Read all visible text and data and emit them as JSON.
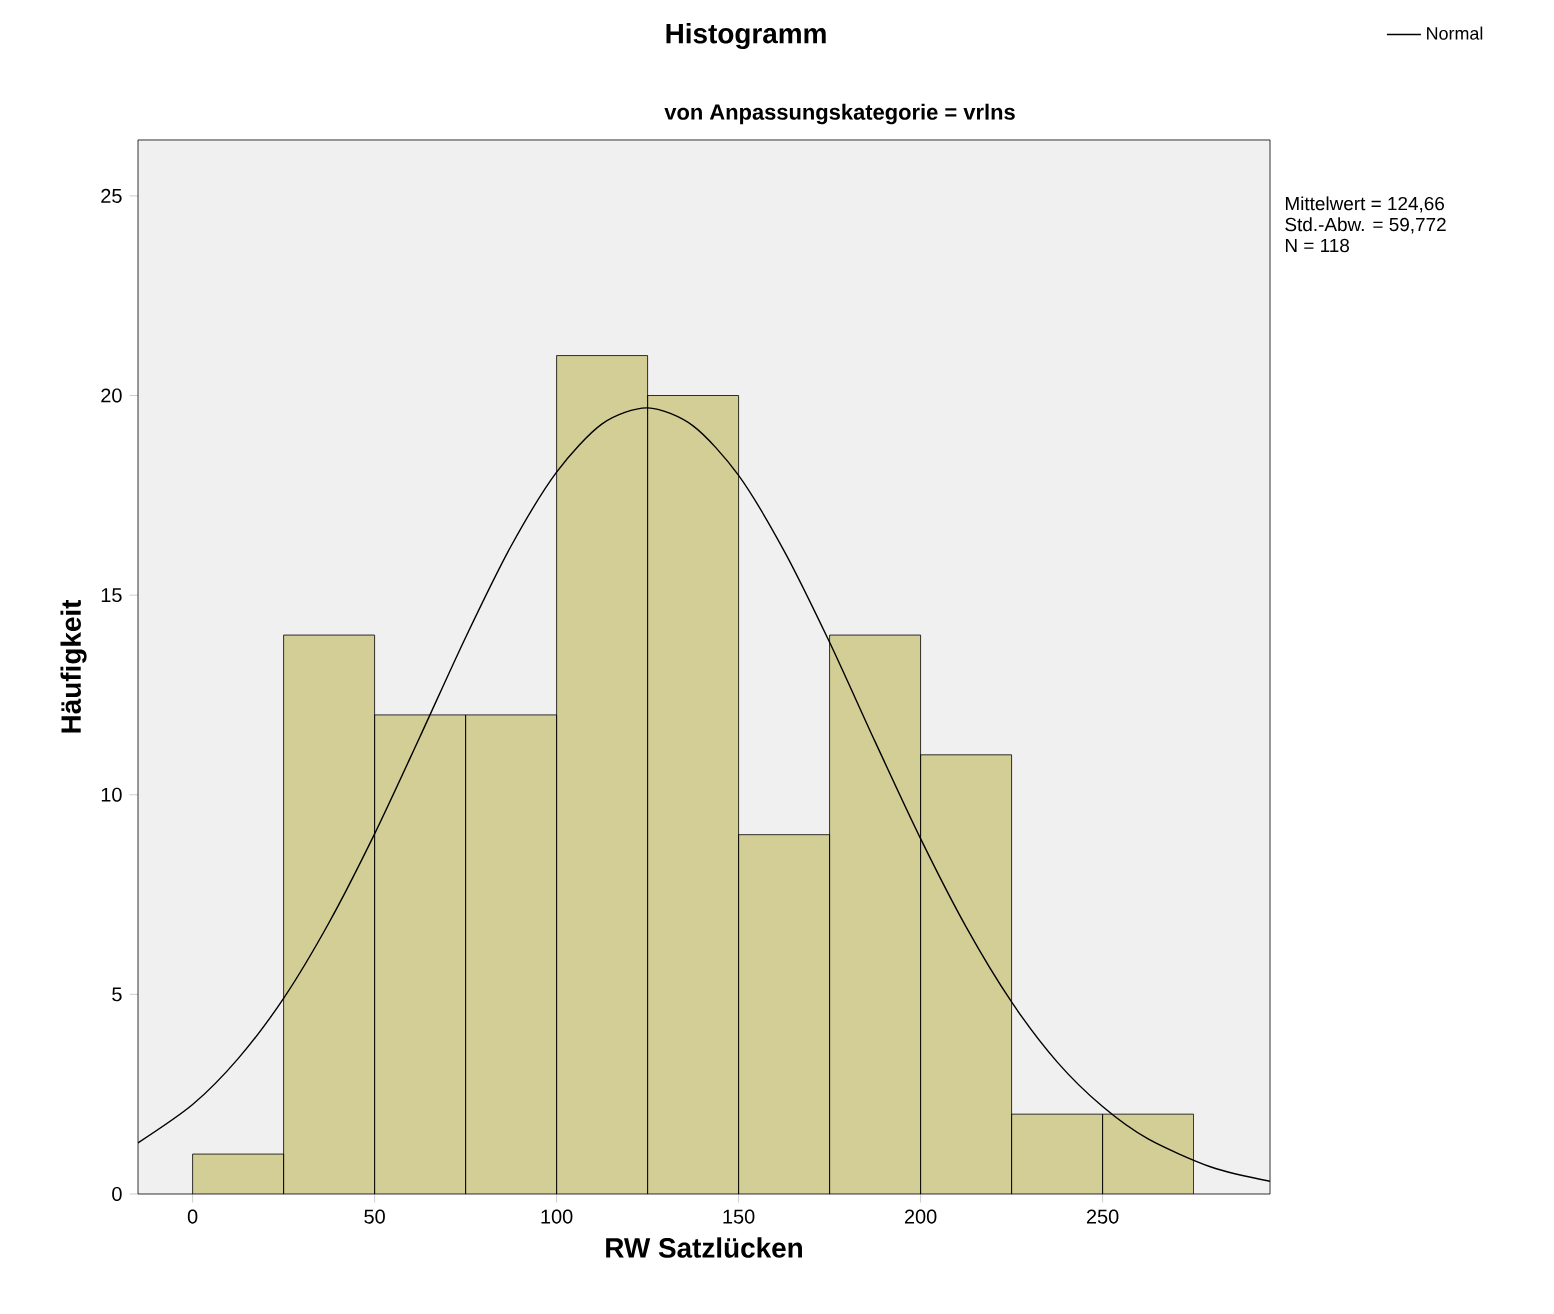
{
  "chart_data": {
    "type": "histogram",
    "title": "Histogramm",
    "subtitle": "von Anpassungskategorie = vrlns",
    "xlabel": "RW Satzlücken",
    "ylabel": "Häufigkeit",
    "bins": [
      0,
      25,
      50,
      75,
      100,
      125,
      150,
      175,
      200,
      225,
      250,
      275
    ],
    "values": [
      1,
      14,
      12,
      12,
      21,
      20,
      9,
      14,
      11,
      2,
      2
    ],
    "color": "#d3cd96",
    "series": [
      {
        "type": "line",
        "name": "Normal",
        "color": "#000000",
        "x": [
          -15,
          0,
          12.5,
          25,
          37.5,
          50,
          62.5,
          75,
          87.5,
          100,
          112.5,
          125,
          137.5,
          150,
          162.5,
          175,
          187.5,
          200,
          212.5,
          225,
          237.5,
          250,
          262.5,
          280,
          296
        ],
        "values": [
          1.28,
          2.24,
          3.39,
          4.9,
          6.8,
          9.02,
          11.46,
          13.94,
          16.23,
          18.08,
          19.29,
          19.69,
          19.24,
          18.0,
          16.11,
          13.82,
          11.33,
          8.9,
          6.69,
          4.81,
          3.31,
          2.19,
          1.38,
          0.67,
          0.32
        ]
      }
    ],
    "xlim": [
      -15,
      296
    ],
    "ylim": [
      0,
      26.4
    ],
    "xticks": [
      0,
      50,
      100,
      150,
      200,
      250
    ],
    "yticks": [
      0,
      5,
      10,
      15,
      20,
      25
    ],
    "legend": "top right",
    "annotations": [
      "Mittelwert = 124,66",
      "Std.-Abw. = 59,772",
      "N = 118"
    ]
  }
}
